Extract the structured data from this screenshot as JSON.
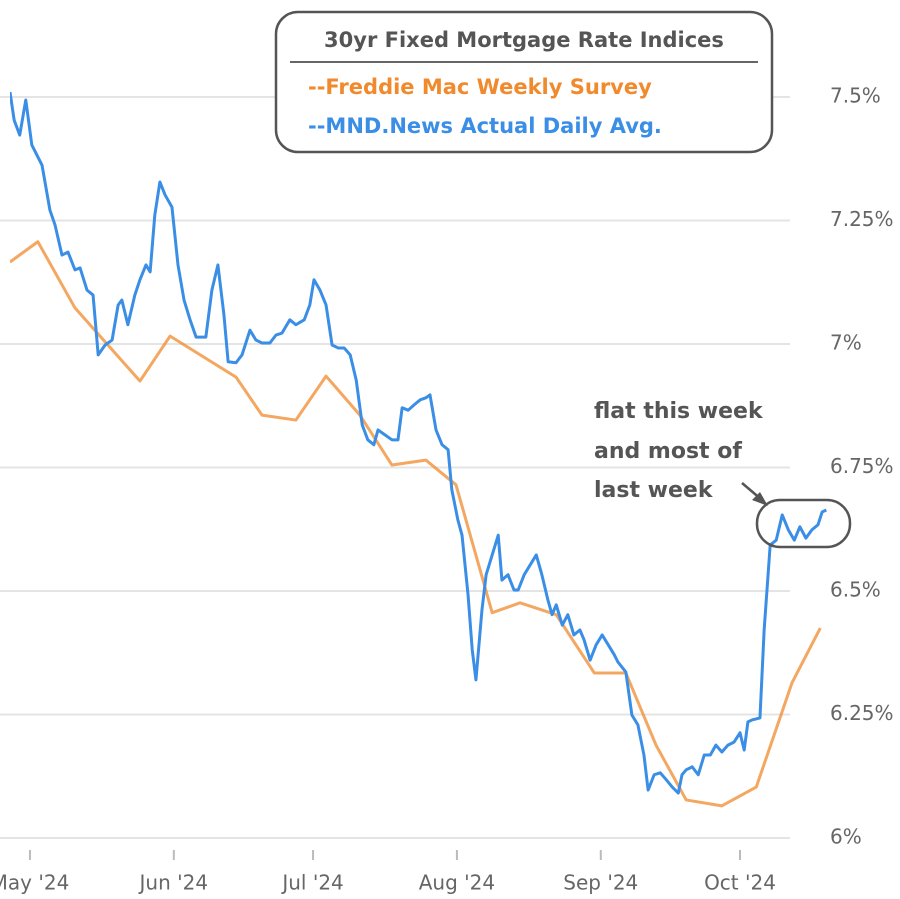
{
  "chart_data": {
    "type": "line",
    "title": "30yr Fixed Mortgage Rate Indices",
    "annotation": [
      "flat this week",
      "and most of",
      "last week"
    ],
    "xlim": [
      -4.3,
      176.7
    ],
    "xticks": [
      {
        "value": 0,
        "label": "May '24"
      },
      {
        "value": 31,
        "label": "Jun '24"
      },
      {
        "value": 61,
        "label": "Jul '24"
      },
      {
        "value": 92,
        "label": "Aug '24"
      },
      {
        "value": 123,
        "label": "Sep '24"
      },
      {
        "value": 153,
        "label": "Oct '24"
      }
    ],
    "ylim": [
      5.97,
      7.6
    ],
    "yticks": [
      {
        "value": 6,
        "label": "6%"
      },
      {
        "value": 6.25,
        "label": "6.25%"
      },
      {
        "value": 6.5,
        "label": "6.5%"
      },
      {
        "value": 6.75,
        "label": "6.75%"
      },
      {
        "value": 7,
        "label": "7%"
      },
      {
        "value": 7.25,
        "label": "7.25%"
      },
      {
        "value": 7.5,
        "label": "7.5%"
      }
    ],
    "grid": true,
    "series": [
      {
        "name": "--Freddie Mac Weekly Survey",
        "color": "#f08a2c",
        "x": [
          -4.3,
          1.7,
          9.7,
          23.7,
          30.2,
          44.4,
          50.0,
          57.3,
          63.8,
          71.1,
          78.0,
          85.3,
          91.8,
          99.6,
          105.6,
          113.4,
          121.6,
          128.4,
          134.9,
          141.4,
          149.1,
          156.5,
          164.2,
          170.3
        ],
        "values": [
          7.166,
          7.207,
          7.073,
          6.925,
          7.016,
          6.933,
          6.856,
          6.846,
          6.935,
          6.856,
          6.755,
          6.765,
          6.715,
          6.456,
          6.476,
          6.452,
          6.334,
          6.334,
          6.188,
          6.077,
          6.065,
          6.103,
          6.314,
          6.425
        ]
      },
      {
        "name": "--MND.News Actual Daily Avg.",
        "color": "#3a8ee6",
        "x": [
          -4.3,
          -3.4,
          -2.2,
          -0.9,
          0.4,
          2.6,
          4.3,
          5.4,
          6.9,
          8.2,
          9.7,
          10.8,
          12.3,
          13.6,
          14.7,
          16.2,
          17.7,
          19.0,
          19.8,
          21.1,
          22.6,
          23.7,
          25.0,
          25.9,
          26.9,
          28.0,
          29.1,
          30.6,
          31.9,
          33.2,
          34.5,
          35.8,
          37.9,
          39.2,
          40.5,
          41.8,
          42.7,
          44.4,
          45.7,
          47.4,
          48.7,
          50.0,
          51.7,
          53.0,
          54.3,
          56.0,
          57.3,
          59.1,
          60.3,
          61.2,
          62.5,
          63.8,
          65.1,
          66.4,
          67.7,
          69.0,
          70.3,
          71.6,
          72.8,
          74.1,
          75.0,
          76.5,
          78.0,
          79.3,
          80.2,
          81.5,
          82.8,
          84.1,
          85.3,
          86.2,
          87.5,
          88.8,
          90.1,
          90.9,
          92.2,
          93.1,
          94.4,
          95.3,
          96.1,
          97.4,
          98.3,
          99.6,
          100.9,
          101.7,
          103.0,
          104.3,
          105.2,
          106.5,
          107.8,
          109.1,
          110.3,
          111.6,
          112.5,
          113.4,
          114.7,
          115.9,
          117.2,
          118.5,
          119.4,
          120.7,
          122.0,
          123.3,
          124.6,
          125.9,
          126.7,
          128.4,
          129.7,
          131.0,
          132.3,
          133.2,
          134.5,
          135.8,
          137.1,
          138.4,
          139.7,
          140.5,
          141.4,
          142.7,
          144.0,
          145.3,
          146.6,
          147.8,
          149.1,
          150.4,
          151.7,
          153.0,
          153.9,
          154.7,
          155.6,
          157.3,
          158.2,
          159.5,
          160.8,
          162.1,
          163.4,
          164.7,
          165.9,
          167.2,
          168.5,
          169.8,
          170.7,
          171.6
        ],
        "values": [
          7.51,
          7.453,
          7.423,
          7.494,
          7.403,
          7.362,
          7.271,
          7.241,
          7.18,
          7.186,
          7.15,
          7.154,
          7.109,
          7.099,
          6.978,
          6.998,
          7.008,
          7.079,
          7.089,
          7.039,
          7.099,
          7.13,
          7.16,
          7.146,
          7.261,
          7.328,
          7.302,
          7.277,
          7.16,
          7.089,
          7.049,
          7.014,
          7.014,
          7.109,
          7.16,
          7.059,
          6.964,
          6.962,
          6.978,
          7.028,
          7.008,
          7.002,
          7.002,
          7.018,
          7.022,
          7.049,
          7.039,
          7.049,
          7.079,
          7.13,
          7.109,
          7.079,
          6.998,
          6.992,
          6.992,
          6.978,
          6.927,
          6.836,
          6.806,
          6.796,
          6.826,
          6.816,
          6.806,
          6.806,
          6.871,
          6.866,
          6.877,
          6.887,
          6.891,
          6.897,
          6.826,
          6.796,
          6.786,
          6.705,
          6.644,
          6.613,
          6.492,
          6.381,
          6.32,
          6.462,
          6.533,
          6.573,
          6.613,
          6.522,
          6.533,
          6.502,
          6.502,
          6.533,
          6.553,
          6.573,
          6.533,
          6.482,
          6.452,
          6.472,
          6.431,
          6.452,
          6.411,
          6.421,
          6.401,
          6.36,
          6.391,
          6.411,
          6.391,
          6.371,
          6.356,
          6.336,
          6.249,
          6.229,
          6.168,
          6.097,
          6.128,
          6.132,
          6.118,
          6.103,
          6.091,
          6.128,
          6.138,
          6.144,
          6.128,
          6.168,
          6.168,
          6.188,
          6.174,
          6.188,
          6.194,
          6.213,
          6.178,
          6.235,
          6.239,
          6.243,
          6.421,
          6.593,
          6.603,
          6.654,
          6.624,
          6.603,
          6.63,
          6.607,
          6.624,
          6.634,
          6.66,
          6.664
        ]
      }
    ]
  }
}
